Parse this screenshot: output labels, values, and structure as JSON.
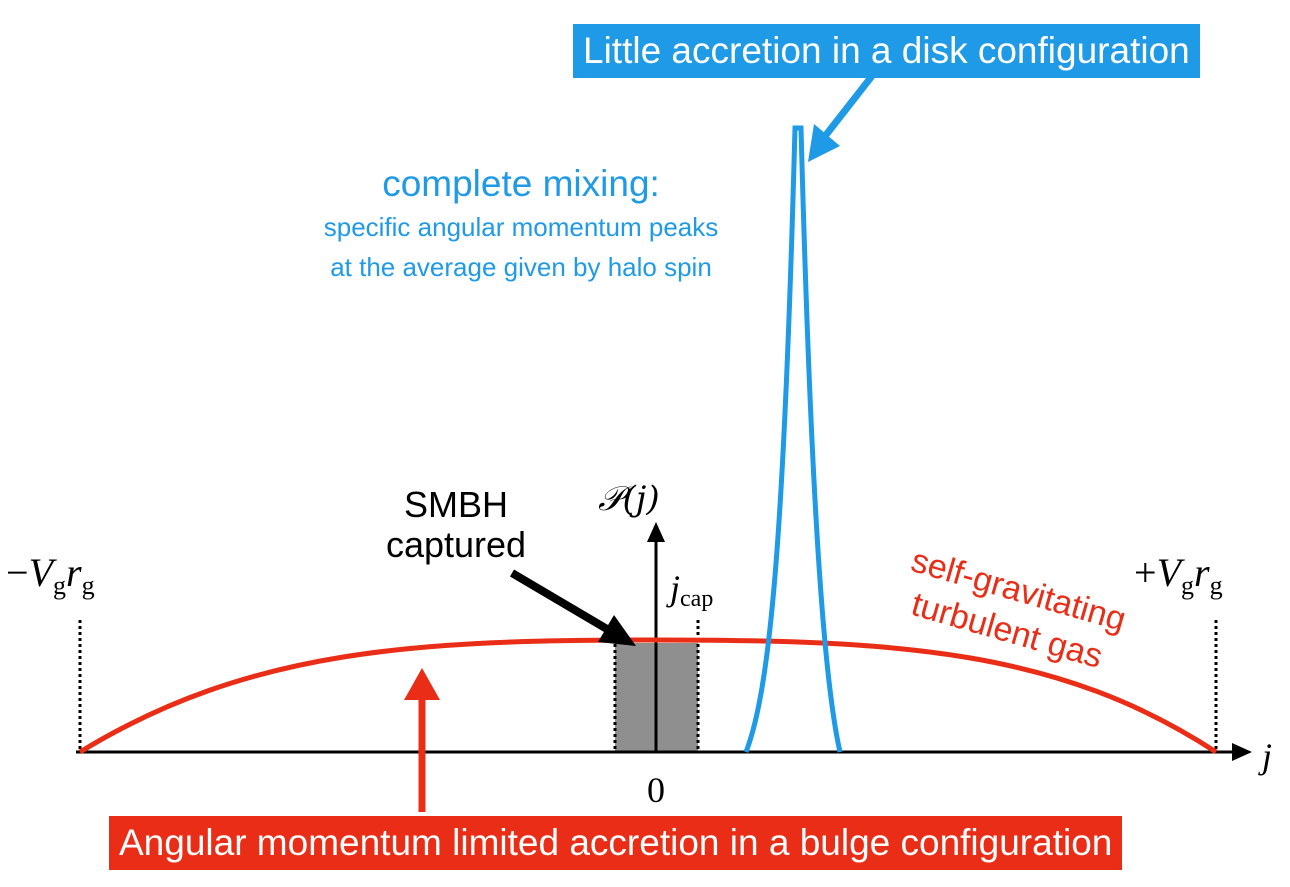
{
  "labels": {
    "disk_callout": "Little accretion in a disk configuration",
    "bulge_callout": "Angular momentum limited accretion in a bulge configuration",
    "mixing_title": "complete mixing:",
    "mixing_line1": "specific angular momentum peaks",
    "mixing_line2": "at the average given by halo spin",
    "smbh_line1": "SMBH",
    "smbh_line2": "captured",
    "gas_line1": "self-gravitating",
    "gas_line2": "turbulent gas",
    "y_axis": "𝒫(j)",
    "x_axis": "j",
    "origin": "0",
    "j_cap_main": "j",
    "j_cap_sub": "cap",
    "left_limit_sign": "−",
    "left_limit_V": "V",
    "left_limit_Vsub": "g",
    "left_limit_r": "r",
    "left_limit_rsub": "g",
    "right_limit_sign": "+",
    "right_limit_V": "V",
    "right_limit_Vsub": "g",
    "right_limit_r": "r",
    "right_limit_rsub": "g"
  },
  "colors": {
    "blue": "#1f9ae6",
    "red": "#ea2d16",
    "black": "#000000",
    "gray_fill": "#8f8f8f"
  }
}
